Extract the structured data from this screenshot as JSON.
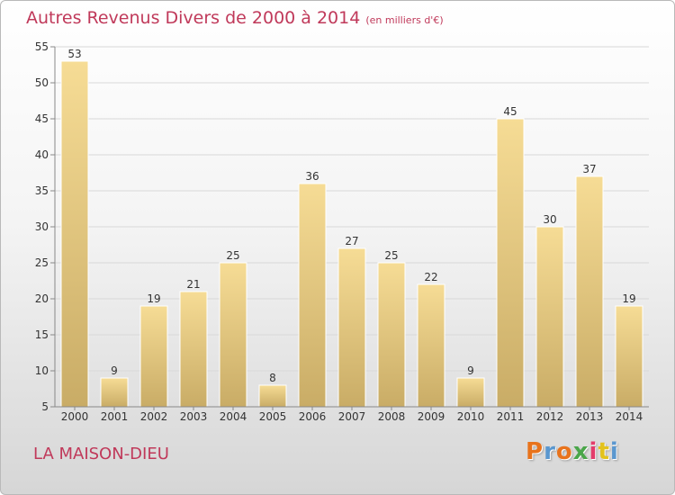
{
  "header": {
    "title": "Autres Revenus Divers de 2000 à 2014",
    "subtitle": "(en milliers d'€)"
  },
  "footer": {
    "place": "LA MAISON-DIEU",
    "brand": "Proxiti"
  },
  "colors": {
    "title": "#c0395a",
    "bar_top": "#f6dc95",
    "bar_bottom": "#c9ac66",
    "brand_letters": [
      "#e8731c",
      "#5a97cf",
      "#e8731c",
      "#4aa64a",
      "#e33b6b",
      "#e3c21c",
      "#5a97cf"
    ]
  },
  "chart_data": {
    "type": "bar",
    "title": "Autres Revenus Divers de 2000 à 2014",
    "subtitle": "(en milliers d'€)",
    "categories": [
      "2000",
      "2001",
      "2002",
      "2003",
      "2004",
      "2005",
      "2006",
      "2007",
      "2008",
      "2009",
      "2010",
      "2011",
      "2012",
      "2013",
      "2014"
    ],
    "values": [
      53,
      9,
      19,
      21,
      25,
      8,
      36,
      27,
      25,
      22,
      9,
      45,
      30,
      37,
      19
    ],
    "ylim": [
      5,
      55
    ],
    "yticks": [
      5,
      10,
      15,
      20,
      25,
      30,
      35,
      40,
      45,
      50,
      55
    ],
    "grid": true,
    "data_labels": true
  }
}
